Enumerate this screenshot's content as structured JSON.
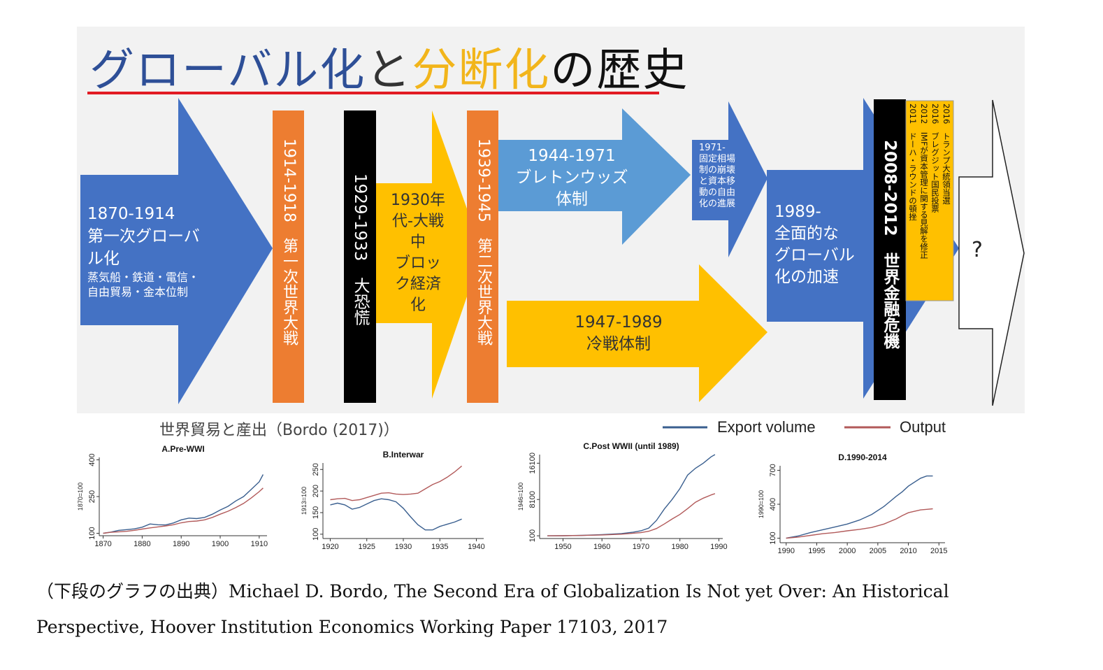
{
  "title": {
    "part1": "グローバル化",
    "part2": "と",
    "part3": "分断化",
    "part4": "の歴史",
    "colors": {
      "part1": "#2e4f97",
      "part2": "#333333",
      "part3": "#f2b51b",
      "part4": "#111111",
      "underline": "#e21b23"
    }
  },
  "arrow_first": {
    "years": "1870-1914",
    "line1": "第一次グローバ",
    "line2": "ル化",
    "sub1": "蒸気船・鉄道・電信・",
    "sub2": "自由貿易・金本位制"
  },
  "bar_ww1": {
    "text": "1914-1918　第一次世界大戦"
  },
  "bar_depression": {
    "text": "1929-1933　大恐慌"
  },
  "arrow_bloc": {
    "line1": "1930年",
    "line2": "代-大戦",
    "line3": "中",
    "line4": "ブロッ",
    "line5": "ク経済",
    "line6": "化"
  },
  "bar_ww2": {
    "text": "1939-1945　第二次世界大戦"
  },
  "arrow_bretton": {
    "line1": "1944-1971",
    "line2": "ブレトンウッズ",
    "line3": "体制"
  },
  "arrow_coldwar": {
    "line1": "1947-1989",
    "line2": "冷戦体制"
  },
  "arrow_1971": {
    "line1": "1971-",
    "line2": "固定相場",
    "line3": "制の崩壊",
    "line4": "と資本移",
    "line5": "動の自由",
    "line6": "化の進展"
  },
  "arrow_1989": {
    "line1": "1989-",
    "line2": "全面的な",
    "line3": "グローバル",
    "line4": "化の加速"
  },
  "bar_gfc": {
    "text": "2008-2012　世界金融危機"
  },
  "events_box": {
    "items": [
      "2016　トランプ大統領当選",
      "2016　ブレグジット国民投票",
      "2012　IMFが資本管理に関する見解を修正",
      "2011　ドーハ・ラウンドの頓挫"
    ]
  },
  "future_arrow": {
    "label": "?"
  },
  "charts_heading": "世界貿易と産出（Bordo (2017)）",
  "legend": {
    "export": "Export volume",
    "output": "Output"
  },
  "colors": {
    "export": "#3a5f8f",
    "output": "#b25a5a",
    "blue_dark": "#4472c4",
    "blue_light": "#5b9bd5",
    "orange": "#ed7d31",
    "gold": "#ffc000"
  },
  "chart_data": [
    {
      "type": "line",
      "title": "A.Pre-WWI",
      "ylabel": "1870=100",
      "x_ticks": [
        1870,
        1880,
        1890,
        1900,
        1910
      ],
      "y_ticks": [
        100,
        250,
        400
      ],
      "xlim": [
        1869,
        1912
      ],
      "ylim": [
        90,
        410
      ],
      "series": [
        {
          "name": "Export volume",
          "x": [
            1870,
            1872,
            1874,
            1876,
            1878,
            1880,
            1882,
            1884,
            1886,
            1888,
            1890,
            1892,
            1894,
            1896,
            1898,
            1900,
            1902,
            1904,
            1906,
            1908,
            1910,
            1911
          ],
          "values": [
            100,
            105,
            112,
            115,
            118,
            125,
            138,
            135,
            134,
            142,
            155,
            162,
            160,
            165,
            178,
            195,
            210,
            232,
            250,
            280,
            310,
            340
          ]
        },
        {
          "name": "Output",
          "x": [
            1870,
            1872,
            1874,
            1876,
            1878,
            1880,
            1882,
            1884,
            1886,
            1888,
            1890,
            1892,
            1894,
            1896,
            1898,
            1900,
            1902,
            1904,
            1906,
            1908,
            1910,
            1911
          ],
          "values": [
            100,
            104,
            106,
            108,
            112,
            117,
            122,
            126,
            130,
            135,
            143,
            148,
            150,
            155,
            165,
            178,
            190,
            205,
            222,
            245,
            270,
            285
          ]
        }
      ]
    },
    {
      "type": "line",
      "title": "B.Interwar",
      "ylabel": "1913=100",
      "x_ticks": [
        1920,
        1925,
        1930,
        1935,
        1940
      ],
      "y_ticks": [
        100,
        150,
        200,
        250
      ],
      "xlim": [
        1919,
        1941
      ],
      "ylim": [
        90,
        265
      ],
      "series": [
        {
          "name": "Export volume",
          "x": [
            1920,
            1921,
            1922,
            1923,
            1924,
            1925,
            1926,
            1927,
            1928,
            1929,
            1930,
            1931,
            1932,
            1933,
            1934,
            1935,
            1936,
            1937,
            1938
          ],
          "values": [
            168,
            172,
            168,
            158,
            162,
            170,
            178,
            182,
            180,
            175,
            160,
            140,
            122,
            110,
            110,
            118,
            123,
            128,
            135
          ]
        },
        {
          "name": "Output",
          "x": [
            1920,
            1921,
            1922,
            1923,
            1924,
            1925,
            1926,
            1927,
            1928,
            1929,
            1930,
            1931,
            1932,
            1933,
            1934,
            1935,
            1936,
            1937,
            1938
          ],
          "values": [
            180,
            182,
            183,
            178,
            180,
            185,
            190,
            195,
            196,
            193,
            192,
            193,
            195,
            205,
            215,
            222,
            232,
            244,
            258
          ]
        }
      ]
    },
    {
      "type": "line",
      "title": "C.Post WWII (until 1989)",
      "ylabel": "1946=100",
      "x_ticks": [
        1950,
        1960,
        1970,
        1980,
        1990
      ],
      "y_ticks": [
        100,
        8100,
        16100
      ],
      "xlim": [
        1944,
        1991
      ],
      "ylim": [
        -500,
        18000
      ],
      "series": [
        {
          "name": "Export volume",
          "x": [
            1946,
            1950,
            1955,
            1960,
            1965,
            1968,
            1970,
            1972,
            1974,
            1976,
            1978,
            1980,
            1982,
            1984,
            1986,
            1988,
            1989
          ],
          "values": [
            100,
            120,
            200,
            350,
            600,
            900,
            1200,
            1800,
            3500,
            6000,
            8100,
            10500,
            13500,
            15000,
            16100,
            17500,
            18000
          ]
        },
        {
          "name": "Output",
          "x": [
            1946,
            1950,
            1955,
            1960,
            1965,
            1970,
            1972,
            1974,
            1976,
            1978,
            1980,
            1982,
            1984,
            1986,
            1988,
            1989
          ],
          "values": [
            100,
            110,
            180,
            280,
            450,
            800,
            1100,
            1700,
            2700,
            3800,
            4800,
            6100,
            7500,
            8400,
            9100,
            9400
          ]
        }
      ]
    },
    {
      "type": "line",
      "title": "D.1990-2014",
      "ylabel": "1990=100",
      "x_ticks": [
        1990,
        1995,
        2000,
        2005,
        2010,
        2015
      ],
      "y_ticks": [
        100,
        400,
        700
      ],
      "xlim": [
        1989,
        2016
      ],
      "ylim": [
        60,
        740
      ],
      "series": [
        {
          "name": "Export volume",
          "x": [
            1990,
            1992,
            1994,
            1996,
            1998,
            2000,
            2002,
            2004,
            2006,
            2008,
            2009,
            2010,
            2012,
            2013,
            2014
          ],
          "values": [
            100,
            120,
            150,
            175,
            200,
            225,
            260,
            310,
            380,
            470,
            510,
            560,
            630,
            650,
            650
          ]
        },
        {
          "name": "Output",
          "x": [
            1990,
            1992,
            1994,
            1996,
            1998,
            2000,
            2002,
            2004,
            2006,
            2008,
            2009,
            2010,
            2012,
            2013,
            2014
          ],
          "values": [
            100,
            110,
            125,
            140,
            150,
            165,
            178,
            195,
            225,
            270,
            300,
            325,
            350,
            355,
            360
          ]
        }
      ]
    }
  ],
  "citation": {
    "line1": "（下段のグラフの出典）Michael D. Bordo, The Second Era of Globalization Is Not yet Over: An Historical",
    "line2": "Perspective, Hoover Institution Economics Working Paper 17103, 2017"
  }
}
